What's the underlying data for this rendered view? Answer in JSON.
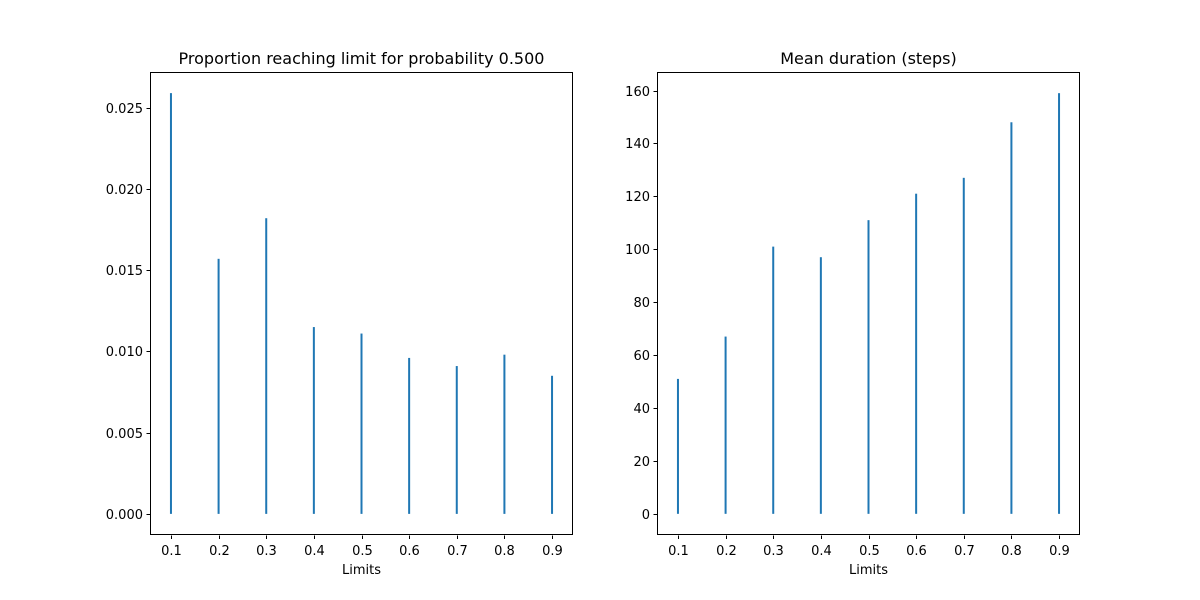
{
  "chart_data": [
    {
      "type": "bar",
      "title": "Proportion reaching limit for probability 0.500",
      "xlabel": "Limits",
      "ylabel": "",
      "categories": [
        "0.1",
        "0.2",
        "0.3",
        "0.4",
        "0.5",
        "0.6",
        "0.7",
        "0.8",
        "0.9"
      ],
      "x": [
        0.1,
        0.2,
        0.3,
        0.4,
        0.5,
        0.6,
        0.7,
        0.8,
        0.9
      ],
      "values": [
        0.0259,
        0.0157,
        0.0182,
        0.0115,
        0.0111,
        0.0096,
        0.0091,
        0.0098,
        0.0085
      ],
      "xlim": [
        0.056,
        0.944
      ],
      "ylim": [
        -0.0013,
        0.0272
      ],
      "yticks": [
        0.0,
        0.005,
        0.01,
        0.015,
        0.02,
        0.025
      ],
      "ytick_labels": [
        "0.000",
        "0.005",
        "0.010",
        "0.015",
        "0.020",
        "0.025"
      ],
      "grid": false,
      "color": "#1f77b4"
    },
    {
      "type": "bar",
      "title": "Mean duration (steps)",
      "xlabel": "Limits",
      "ylabel": "",
      "categories": [
        "0.1",
        "0.2",
        "0.3",
        "0.4",
        "0.5",
        "0.6",
        "0.7",
        "0.8",
        "0.9"
      ],
      "x": [
        0.1,
        0.2,
        0.3,
        0.4,
        0.5,
        0.6,
        0.7,
        0.8,
        0.9
      ],
      "values": [
        51,
        67,
        101,
        97,
        111,
        121,
        127,
        148,
        159
      ],
      "xlim": [
        0.056,
        0.944
      ],
      "ylim": [
        -8,
        167
      ],
      "yticks": [
        0,
        20,
        40,
        60,
        80,
        100,
        120,
        140,
        160
      ],
      "ytick_labels": [
        "0",
        "20",
        "40",
        "60",
        "80",
        "100",
        "120",
        "140",
        "160"
      ],
      "grid": false,
      "color": "#1f77b4"
    }
  ]
}
